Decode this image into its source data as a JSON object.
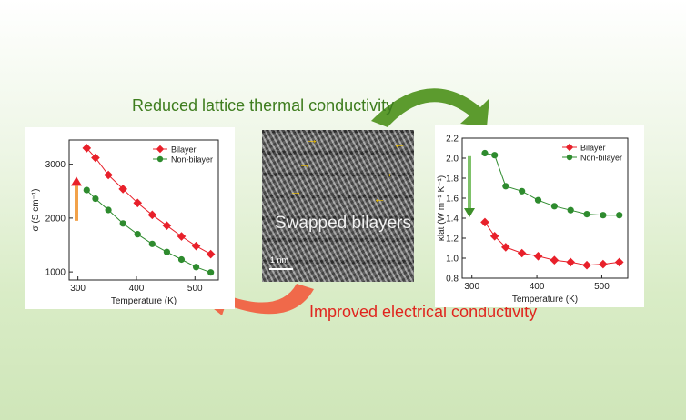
{
  "captions": {
    "top": "Reduced lattice thermal conductivity",
    "bottom": "Improved electrical conductivity"
  },
  "micrograph": {
    "label": "Swapped bilayers",
    "scale": "1 nm"
  },
  "colors": {
    "bilayer": "#e8202a",
    "non_bilayer": "#2e8b2e",
    "top_arrow": "#5c9b2e",
    "bottom_arrow": "#f0694a"
  },
  "chart_data": [
    {
      "type": "line",
      "xlabel": "Temperature (K)",
      "ylabel": "σ (S cm⁻¹)",
      "xlim": [
        285,
        540
      ],
      "ylim": [
        850,
        3450
      ],
      "xticks": [
        300,
        400,
        500
      ],
      "yticks": [
        1000,
        2000,
        3000
      ],
      "legend": "top-right",
      "series": [
        {
          "name": "Bilayer",
          "x": [
            315,
            330,
            352,
            377,
            402,
            427,
            452,
            477,
            502,
            527
          ],
          "y": [
            3300,
            3120,
            2800,
            2540,
            2280,
            2060,
            1860,
            1660,
            1480,
            1330
          ]
        },
        {
          "name": "Non-bilayer",
          "x": [
            315,
            330,
            352,
            377,
            402,
            427,
            452,
            477,
            502,
            527
          ],
          "y": [
            2520,
            2360,
            2150,
            1900,
            1700,
            1520,
            1370,
            1230,
            1090,
            990
          ]
        }
      ]
    },
    {
      "type": "line",
      "xlabel": "Temperature (K)",
      "ylabel": "κlat (W m⁻¹ K⁻¹)",
      "xlim": [
        285,
        540
      ],
      "ylim": [
        0.8,
        2.2
      ],
      "xticks": [
        300,
        400,
        500
      ],
      "yticks": [
        0.8,
        1.0,
        1.2,
        1.4,
        1.6,
        1.8,
        2.0,
        2.2
      ],
      "legend": "top-right",
      "series": [
        {
          "name": "Bilayer",
          "x": [
            320,
            335,
            352,
            377,
            402,
            427,
            452,
            477,
            502,
            527
          ],
          "y": [
            1.36,
            1.22,
            1.11,
            1.05,
            1.02,
            0.98,
            0.96,
            0.93,
            0.94,
            0.96
          ]
        },
        {
          "name": "Non-bilayer",
          "x": [
            320,
            335,
            352,
            377,
            402,
            427,
            452,
            477,
            502,
            527
          ],
          "y": [
            2.05,
            2.03,
            1.72,
            1.67,
            1.58,
            1.52,
            1.48,
            1.44,
            1.43,
            1.43
          ]
        }
      ]
    }
  ]
}
